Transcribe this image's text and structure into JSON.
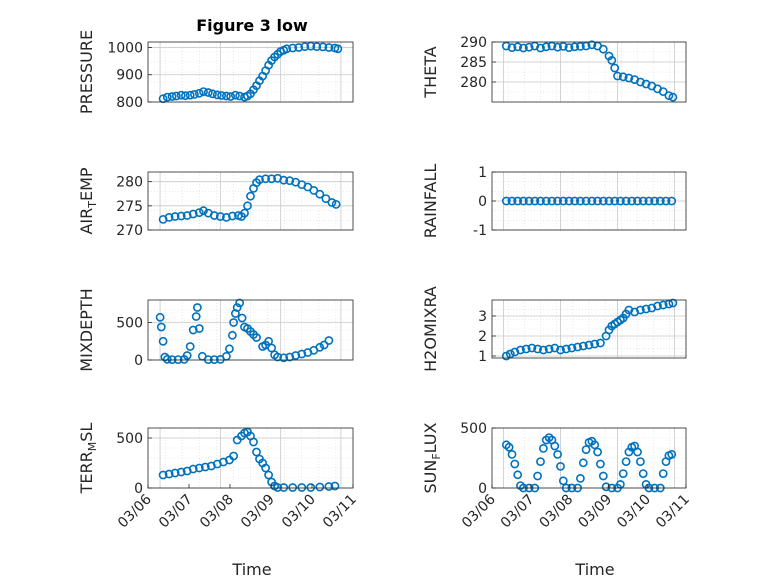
{
  "title": "Figure 3 low",
  "marker_color": "#0072BD",
  "x_tick_labels": [
    "03/06",
    "03/07",
    "03/08",
    "03/09",
    "03/10",
    "03/11"
  ],
  "xlabel": "Time",
  "chart_data": [
    {
      "type": "scatter",
      "id": "pressure",
      "ylabel": "PRESSURE",
      "ylim": [
        800,
        1020
      ],
      "yticks": [
        800,
        900,
        1000
      ],
      "points": [
        [
          0.05,
          812
        ],
        [
          0.12,
          818
        ],
        [
          0.2,
          820
        ],
        [
          0.27,
          822
        ],
        [
          0.35,
          825
        ],
        [
          0.42,
          823
        ],
        [
          0.5,
          825
        ],
        [
          0.57,
          828
        ],
        [
          0.65,
          832
        ],
        [
          0.72,
          838
        ],
        [
          0.8,
          835
        ],
        [
          0.87,
          830
        ],
        [
          0.95,
          826
        ],
        [
          1.02,
          824
        ],
        [
          1.1,
          822
        ],
        [
          1.17,
          820
        ],
        [
          1.25,
          825
        ],
        [
          1.32,
          822
        ],
        [
          1.4,
          818
        ],
        [
          1.45,
          822
        ],
        [
          1.5,
          830
        ],
        [
          1.55,
          845
        ],
        [
          1.6,
          860
        ],
        [
          1.65,
          878
        ],
        [
          1.7,
          895
        ],
        [
          1.75,
          915
        ],
        [
          1.8,
          935
        ],
        [
          1.85,
          952
        ],
        [
          1.9,
          965
        ],
        [
          1.95,
          975
        ],
        [
          2.0,
          985
        ],
        [
          2.05,
          990
        ],
        [
          2.1,
          995
        ],
        [
          2.2,
          998
        ],
        [
          2.3,
          1000
        ],
        [
          2.4,
          1003
        ],
        [
          2.5,
          1005
        ],
        [
          2.6,
          1003
        ],
        [
          2.7,
          1002
        ],
        [
          2.8,
          1000
        ],
        [
          2.9,
          998
        ],
        [
          2.95,
          995
        ]
      ]
    },
    {
      "type": "scatter",
      "id": "theta",
      "ylabel": "THETA",
      "ylim": [
        275,
        290
      ],
      "yticks": [
        280,
        285,
        290
      ],
      "points": [
        [
          0.05,
          289
        ],
        [
          0.15,
          288.6
        ],
        [
          0.25,
          288.8
        ],
        [
          0.35,
          288.5
        ],
        [
          0.45,
          288.7
        ],
        [
          0.55,
          289
        ],
        [
          0.65,
          288.5
        ],
        [
          0.75,
          288.8
        ],
        [
          0.85,
          289
        ],
        [
          0.95,
          288.7
        ],
        [
          1.05,
          288.9
        ],
        [
          1.15,
          288.6
        ],
        [
          1.25,
          288.8
        ],
        [
          1.35,
          288.9
        ],
        [
          1.45,
          289
        ],
        [
          1.55,
          289.3
        ],
        [
          1.65,
          289
        ],
        [
          1.75,
          288.2
        ],
        [
          1.85,
          286.5
        ],
        [
          1.9,
          285.4
        ],
        [
          1.95,
          283.5
        ],
        [
          2.0,
          281.5
        ],
        [
          2.1,
          281.3
        ],
        [
          2.2,
          281
        ],
        [
          2.3,
          280.6
        ],
        [
          2.4,
          280
        ],
        [
          2.5,
          279.5
        ],
        [
          2.6,
          279
        ],
        [
          2.7,
          278.3
        ],
        [
          2.8,
          277.6
        ],
        [
          2.9,
          276.6
        ],
        [
          2.97,
          276.2
        ]
      ]
    },
    {
      "type": "scatter",
      "id": "air_temp",
      "ylabel": "AIR_TEMP",
      "ylim": [
        270,
        282
      ],
      "yticks": [
        270,
        275,
        280
      ],
      "points": [
        [
          0.05,
          272.2
        ],
        [
          0.15,
          272.6
        ],
        [
          0.25,
          272.8
        ],
        [
          0.35,
          272.9
        ],
        [
          0.45,
          273
        ],
        [
          0.55,
          273.3
        ],
        [
          0.65,
          273.6
        ],
        [
          0.72,
          274
        ],
        [
          0.8,
          273.5
        ],
        [
          0.9,
          273
        ],
        [
          1.0,
          272.8
        ],
        [
          1.1,
          272.6
        ],
        [
          1.2,
          272.9
        ],
        [
          1.3,
          273
        ],
        [
          1.35,
          272.8
        ],
        [
          1.4,
          273.5
        ],
        [
          1.45,
          275
        ],
        [
          1.5,
          277
        ],
        [
          1.55,
          278.6
        ],
        [
          1.6,
          279.8
        ],
        [
          1.65,
          280.4
        ],
        [
          1.75,
          280.6
        ],
        [
          1.85,
          280.6
        ],
        [
          1.95,
          280.7
        ],
        [
          2.05,
          280.3
        ],
        [
          2.15,
          280.2
        ],
        [
          2.25,
          279.9
        ],
        [
          2.35,
          279.4
        ],
        [
          2.45,
          278.9
        ],
        [
          2.55,
          278.2
        ],
        [
          2.65,
          277.4
        ],
        [
          2.75,
          276.5
        ],
        [
          2.85,
          275.7
        ],
        [
          2.92,
          275.3
        ]
      ]
    },
    {
      "type": "scatter",
      "id": "rainfall",
      "ylabel": "RAINFALL",
      "ylim": [
        -1,
        1
      ],
      "yticks": [
        -1,
        0,
        1
      ],
      "points": [
        [
          0.05,
          0
        ],
        [
          0.15,
          0
        ],
        [
          0.25,
          0
        ],
        [
          0.35,
          0
        ],
        [
          0.45,
          0
        ],
        [
          0.55,
          0
        ],
        [
          0.65,
          0
        ],
        [
          0.75,
          0
        ],
        [
          0.85,
          0
        ],
        [
          0.95,
          0
        ],
        [
          1.05,
          0
        ],
        [
          1.15,
          0
        ],
        [
          1.25,
          0
        ],
        [
          1.35,
          0
        ],
        [
          1.45,
          0
        ],
        [
          1.55,
          0
        ],
        [
          1.65,
          0
        ],
        [
          1.75,
          0
        ],
        [
          1.85,
          0
        ],
        [
          1.95,
          0
        ],
        [
          2.05,
          0
        ],
        [
          2.15,
          0
        ],
        [
          2.25,
          0
        ],
        [
          2.35,
          0
        ],
        [
          2.45,
          0
        ],
        [
          2.55,
          0
        ],
        [
          2.65,
          0
        ],
        [
          2.75,
          0
        ],
        [
          2.85,
          0
        ],
        [
          2.95,
          0
        ]
      ]
    },
    {
      "type": "scatter",
      "id": "mixdepth",
      "ylabel": "MIXDEPTH",
      "ylim": [
        0,
        800
      ],
      "yticks": [
        0,
        500
      ],
      "points": [
        [
          0.0,
          570
        ],
        [
          0.02,
          440
        ],
        [
          0.05,
          250
        ],
        [
          0.08,
          40
        ],
        [
          0.12,
          10
        ],
        [
          0.2,
          5
        ],
        [
          0.3,
          5
        ],
        [
          0.4,
          8
        ],
        [
          0.45,
          60
        ],
        [
          0.5,
          180
        ],
        [
          0.55,
          400
        ],
        [
          0.6,
          580
        ],
        [
          0.62,
          700
        ],
        [
          0.65,
          420
        ],
        [
          0.7,
          50
        ],
        [
          0.8,
          5
        ],
        [
          0.9,
          5
        ],
        [
          1.0,
          8
        ],
        [
          1.1,
          50
        ],
        [
          1.15,
          150
        ],
        [
          1.2,
          330
        ],
        [
          1.22,
          500
        ],
        [
          1.25,
          620
        ],
        [
          1.28,
          700
        ],
        [
          1.32,
          760
        ],
        [
          1.36,
          560
        ],
        [
          1.4,
          440
        ],
        [
          1.45,
          420
        ],
        [
          1.5,
          380
        ],
        [
          1.55,
          340
        ],
        [
          1.6,
          300
        ],
        [
          1.7,
          180
        ],
        [
          1.75,
          200
        ],
        [
          1.8,
          250
        ],
        [
          1.85,
          160
        ],
        [
          1.9,
          70
        ],
        [
          1.95,
          40
        ],
        [
          2.05,
          30
        ],
        [
          2.15,
          40
        ],
        [
          2.25,
          60
        ],
        [
          2.35,
          80
        ],
        [
          2.45,
          100
        ],
        [
          2.55,
          130
        ],
        [
          2.65,
          170
        ],
        [
          2.72,
          200
        ],
        [
          2.8,
          260
        ]
      ]
    },
    {
      "type": "scatter",
      "id": "h2omixra",
      "ylabel": "H2OMIXRA",
      "ylim": [
        0.9,
        3.8
      ],
      "yticks": [
        1,
        2,
        3
      ],
      "points": [
        [
          0.05,
          1.0
        ],
        [
          0.12,
          1.1
        ],
        [
          0.2,
          1.2
        ],
        [
          0.3,
          1.3
        ],
        [
          0.4,
          1.35
        ],
        [
          0.5,
          1.4
        ],
        [
          0.6,
          1.35
        ],
        [
          0.7,
          1.3
        ],
        [
          0.8,
          1.35
        ],
        [
          0.9,
          1.4
        ],
        [
          1.0,
          1.3
        ],
        [
          1.1,
          1.35
        ],
        [
          1.2,
          1.4
        ],
        [
          1.3,
          1.45
        ],
        [
          1.4,
          1.5
        ],
        [
          1.5,
          1.55
        ],
        [
          1.6,
          1.6
        ],
        [
          1.7,
          1.65
        ],
        [
          1.8,
          2.0
        ],
        [
          1.85,
          2.3
        ],
        [
          1.9,
          2.5
        ],
        [
          1.95,
          2.6
        ],
        [
          2.0,
          2.7
        ],
        [
          2.05,
          2.8
        ],
        [
          2.1,
          2.9
        ],
        [
          2.15,
          3.1
        ],
        [
          2.2,
          3.3
        ],
        [
          2.3,
          3.2
        ],
        [
          2.4,
          3.3
        ],
        [
          2.5,
          3.35
        ],
        [
          2.6,
          3.4
        ],
        [
          2.7,
          3.5
        ],
        [
          2.8,
          3.55
        ],
        [
          2.9,
          3.6
        ],
        [
          2.97,
          3.65
        ]
      ]
    },
    {
      "type": "scatter",
      "id": "terr_msl",
      "ylabel": "TERR_MSL",
      "ylim": [
        0,
        600
      ],
      "yticks": [
        0,
        500
      ],
      "points": [
        [
          0.05,
          130
        ],
        [
          0.15,
          140
        ],
        [
          0.25,
          150
        ],
        [
          0.35,
          160
        ],
        [
          0.45,
          170
        ],
        [
          0.55,
          190
        ],
        [
          0.65,
          200
        ],
        [
          0.75,
          210
        ],
        [
          0.85,
          220
        ],
        [
          0.95,
          240
        ],
        [
          1.05,
          260
        ],
        [
          1.15,
          280
        ],
        [
          1.22,
          320
        ],
        [
          1.28,
          480
        ],
        [
          1.35,
          520
        ],
        [
          1.4,
          550
        ],
        [
          1.45,
          560
        ],
        [
          1.5,
          520
        ],
        [
          1.55,
          460
        ],
        [
          1.6,
          360
        ],
        [
          1.65,
          290
        ],
        [
          1.7,
          250
        ],
        [
          1.75,
          200
        ],
        [
          1.8,
          130
        ],
        [
          1.85,
          60
        ],
        [
          1.9,
          20
        ],
        [
          1.95,
          5
        ],
        [
          2.05,
          5
        ],
        [
          2.2,
          5
        ],
        [
          2.35,
          5
        ],
        [
          2.5,
          5
        ],
        [
          2.65,
          10
        ],
        [
          2.8,
          15
        ],
        [
          2.9,
          20
        ]
      ]
    },
    {
      "type": "scatter",
      "id": "sun_flux",
      "ylabel": "SUN_FLUX",
      "ylim": [
        0,
        500
      ],
      "yticks": [
        0,
        500
      ],
      "points": [
        [
          0.05,
          360
        ],
        [
          0.1,
          340
        ],
        [
          0.15,
          280
        ],
        [
          0.2,
          200
        ],
        [
          0.25,
          110
        ],
        [
          0.3,
          20
        ],
        [
          0.35,
          0
        ],
        [
          0.45,
          0
        ],
        [
          0.55,
          0
        ],
        [
          0.6,
          100
        ],
        [
          0.65,
          220
        ],
        [
          0.7,
          330
        ],
        [
          0.75,
          400
        ],
        [
          0.8,
          420
        ],
        [
          0.85,
          400
        ],
        [
          0.9,
          350
        ],
        [
          0.95,
          280
        ],
        [
          1.0,
          180
        ],
        [
          1.05,
          60
        ],
        [
          1.1,
          0
        ],
        [
          1.2,
          0
        ],
        [
          1.3,
          0
        ],
        [
          1.35,
          80
        ],
        [
          1.4,
          210
        ],
        [
          1.45,
          320
        ],
        [
          1.5,
          380
        ],
        [
          1.55,
          390
        ],
        [
          1.6,
          360
        ],
        [
          1.65,
          300
        ],
        [
          1.7,
          200
        ],
        [
          1.75,
          100
        ],
        [
          1.8,
          10
        ],
        [
          1.9,
          0
        ],
        [
          2.0,
          0
        ],
        [
          2.05,
          30
        ],
        [
          2.1,
          120
        ],
        [
          2.15,
          220
        ],
        [
          2.2,
          300
        ],
        [
          2.25,
          340
        ],
        [
          2.3,
          350
        ],
        [
          2.35,
          300
        ],
        [
          2.4,
          220
        ],
        [
          2.45,
          120
        ],
        [
          2.5,
          30
        ],
        [
          2.55,
          0
        ],
        [
          2.65,
          0
        ],
        [
          2.75,
          0
        ],
        [
          2.8,
          120
        ],
        [
          2.85,
          220
        ],
        [
          2.9,
          270
        ],
        [
          2.95,
          280
        ]
      ]
    }
  ]
}
